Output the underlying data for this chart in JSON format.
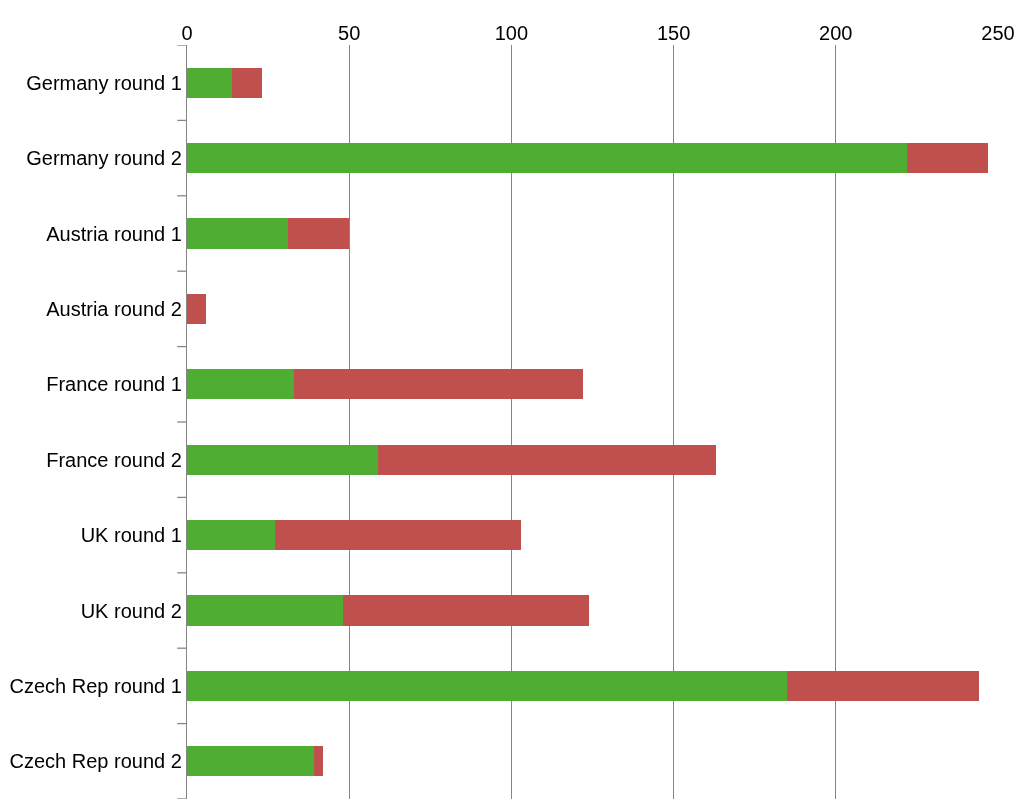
{
  "chart_data": {
    "type": "bar",
    "orientation": "horizontal",
    "stacked": true,
    "categories": [
      "Germany round 1",
      "Germany round 2",
      "Austria round 1",
      "Austria round 2",
      "France round 1",
      "France round 2",
      "UK round 1",
      "UK round 2",
      "Czech Rep round 1",
      "Czech Rep round 2"
    ],
    "series": [
      {
        "color": "#4fad33",
        "values": [
          14,
          222,
          31,
          0,
          33,
          59,
          27,
          48,
          185,
          39
        ]
      },
      {
        "color": "#c0504d",
        "values": [
          9,
          25,
          19,
          6,
          89,
          104,
          76,
          76,
          59,
          3
        ]
      }
    ],
    "xlim": [
      0,
      250
    ],
    "xticks": [
      0,
      50,
      100,
      150,
      200,
      250
    ],
    "grid": "x"
  }
}
